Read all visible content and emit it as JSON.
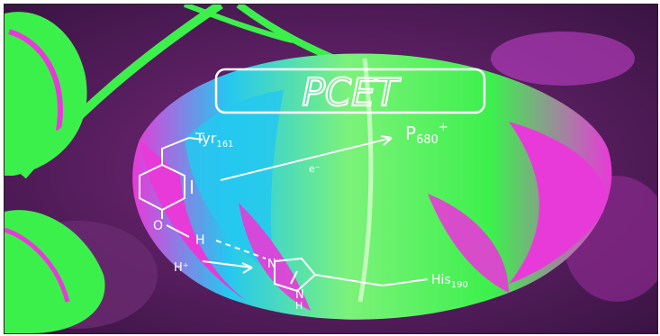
{
  "figure": {
    "title": "PCET",
    "labels": {
      "tyr": "Tyr",
      "tyr_sub": "161",
      "p680": "P",
      "p680_sub": "680",
      "p680_sup": "+",
      "electron": "e⁻",
      "oxygen": "O",
      "hydrogen": "H",
      "proton": "H⁺",
      "nitrogen1": "N",
      "nitrogen2": "N",
      "nitrogen_h": "H",
      "his": "His",
      "his_sub": "190"
    },
    "colors": {
      "magenta": "#e83ad8",
      "green": "#3cf04c",
      "cyan": "#25c8f0",
      "dark_purple": "#4a1a52",
      "line": "#ffffff"
    }
  }
}
